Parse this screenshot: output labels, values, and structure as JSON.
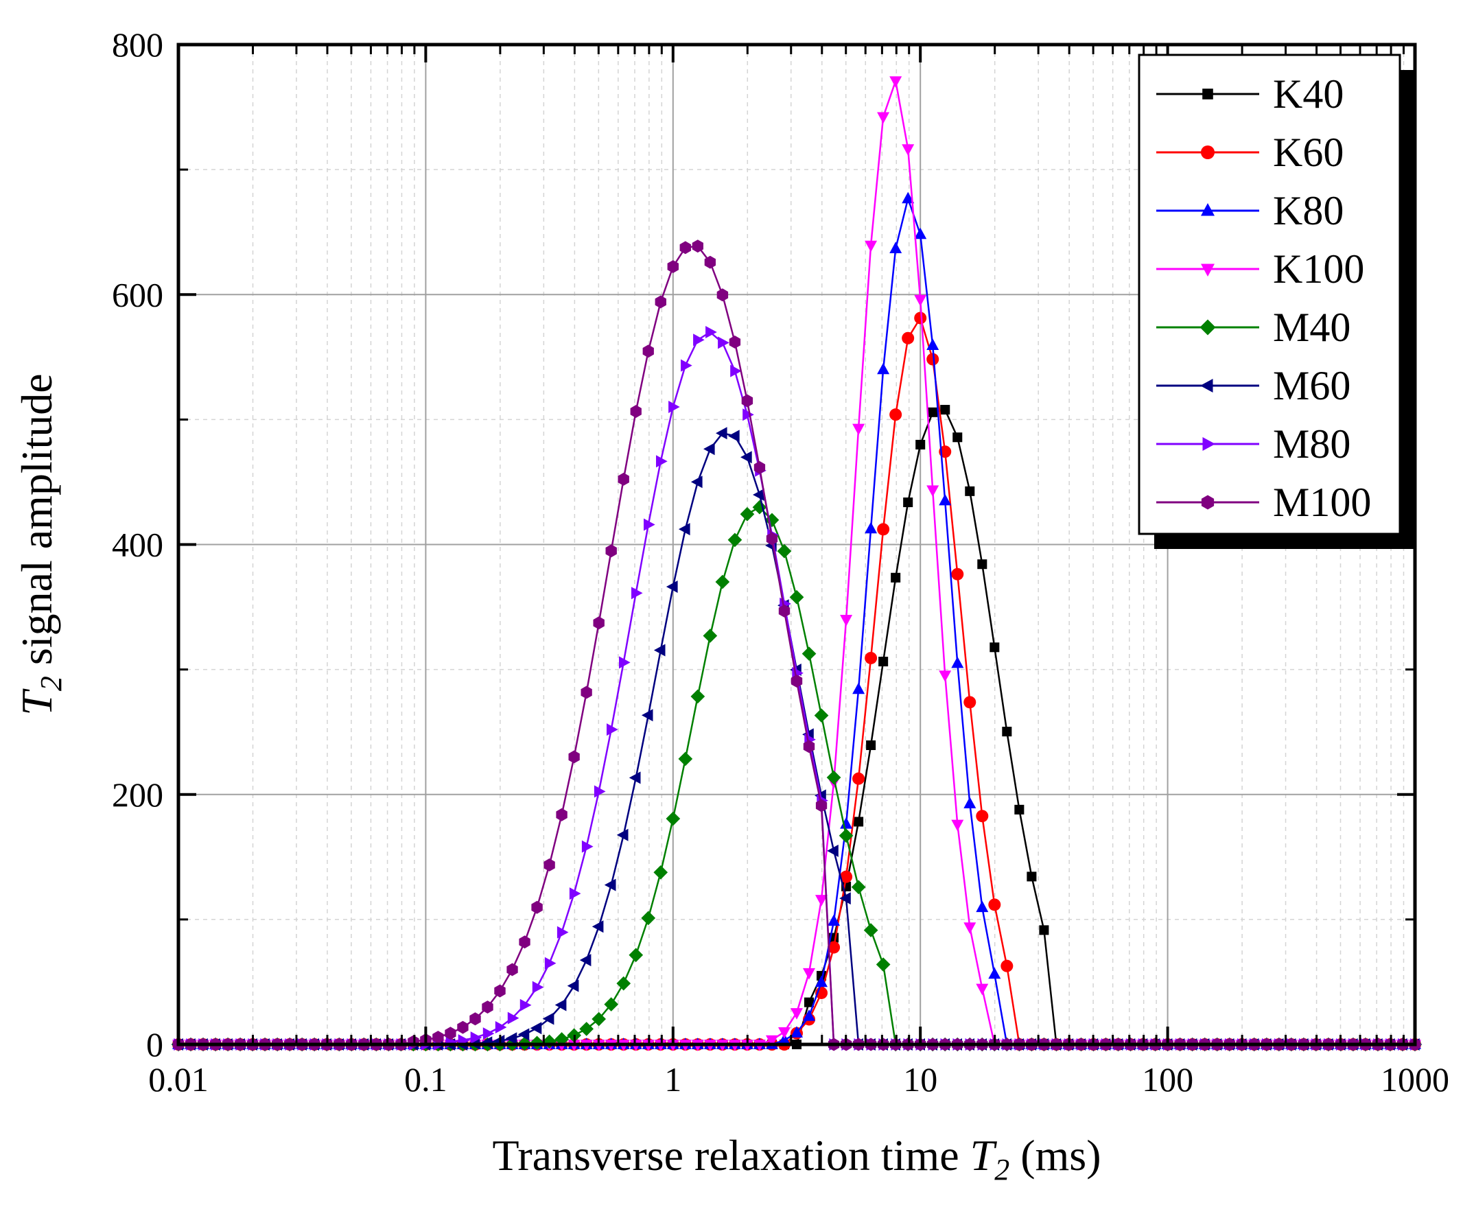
{
  "chart_data": {
    "type": "line",
    "xscale": "log",
    "title": "",
    "xlabel": {
      "prefix": "Transverse relaxation time ",
      "var": "T",
      "sub": "2",
      "suffix": " (ms)"
    },
    "ylabel": {
      "prefix": "",
      "var": "T",
      "sub": "2",
      "suffix": " signal amplitude"
    },
    "xlim": [
      0.01,
      1000
    ],
    "ylim": [
      0,
      800
    ],
    "x_ticks": [
      {
        "value": 0.01,
        "label": "0.01"
      },
      {
        "value": 0.1,
        "label": "0.1"
      },
      {
        "value": 1,
        "label": "1"
      },
      {
        "value": 10,
        "label": "10"
      },
      {
        "value": 100,
        "label": "100"
      },
      {
        "value": 1000,
        "label": "1000"
      }
    ],
    "y_ticks": [
      {
        "value": 0,
        "label": "0"
      },
      {
        "value": 200,
        "label": "200"
      },
      {
        "value": 400,
        "label": "400"
      },
      {
        "value": 600,
        "label": "600"
      },
      {
        "value": 800,
        "label": "800"
      }
    ],
    "grid": true,
    "legend_position": "top-right",
    "series": [
      {
        "name": "K40",
        "color": "#000000",
        "marker": "square",
        "peak_x": 12.0,
        "peak_y": 510,
        "width_decades": 0.227,
        "start_x": 3.5,
        "end_x": 32
      },
      {
        "name": "K60",
        "color": "#ff0000",
        "marker": "circle",
        "peak_x": 9.8,
        "peak_y": 582,
        "width_decades": 0.17,
        "start_x": 2.9,
        "end_x": 25
      },
      {
        "name": "K80",
        "color": "#0000ff",
        "marker": "triangle-up",
        "peak_x": 9.0,
        "peak_y": 677,
        "width_decades": 0.155,
        "start_x": 2.65,
        "end_x": 21.5
      },
      {
        "name": "K100",
        "color": "#ff00ff",
        "marker": "triangle-down",
        "peak_x": 7.8,
        "peak_y": 772,
        "width_decades": 0.15,
        "start_x": 2.4,
        "end_x": 19.5
      },
      {
        "name": "M40",
        "color": "#008000",
        "marker": "diamond",
        "peak_x": 2.2,
        "peak_y": 430,
        "width_decades": 0.26,
        "start_x": 0.2,
        "end_x": 7.5
      },
      {
        "name": "M60",
        "color": "#000080",
        "marker": "triangle-left",
        "peak_x": 1.65,
        "peak_y": 490,
        "width_decades": 0.285,
        "start_x": 0.15,
        "end_x": 5.5
      },
      {
        "name": "M80",
        "color": "#8000ff",
        "marker": "triangle-right",
        "peak_x": 1.4,
        "peak_y": 570,
        "width_decades": 0.31,
        "start_x": 0.12,
        "end_x": 4.3
      },
      {
        "name": "M100",
        "color": "#800080",
        "marker": "hexagon",
        "peak_x": 1.2,
        "peak_y": 640,
        "width_decades": 0.335,
        "start_x": 0.08,
        "end_x": 4.0
      }
    ]
  }
}
